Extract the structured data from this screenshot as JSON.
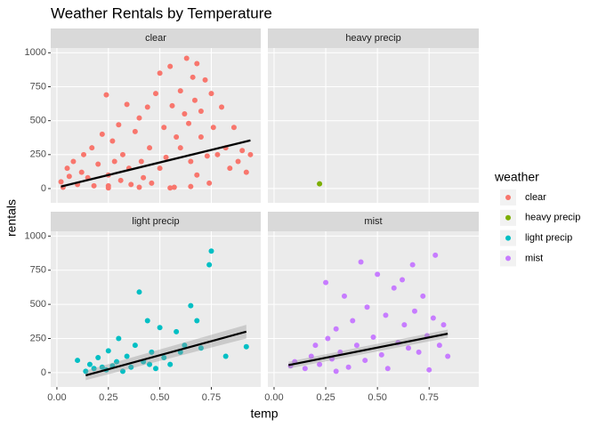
{
  "chart_data": {
    "type": "scatter",
    "title": "Weather Rentals by Temperature",
    "x_label": "temp",
    "y_label": "rentals",
    "legend_title": "weather",
    "xlim": [
      -0.03,
      0.99
    ],
    "ylim": [
      -105,
      1035
    ],
    "xticks": [
      {
        "value": 0,
        "label": "0.00"
      },
      {
        "value": 0.25,
        "label": "0.25"
      },
      {
        "value": 0.5,
        "label": "0.50"
      },
      {
        "value": 0.75,
        "label": "0.75"
      }
    ],
    "yticks": [
      0,
      250,
      500,
      750,
      1000
    ],
    "grid": true,
    "facets": [
      {
        "name": "clear",
        "color": "#F8766D",
        "x": [
          0.02,
          0.03,
          0.05,
          0.06,
          0.08,
          0.1,
          0.12,
          0.13,
          0.15,
          0.17,
          0.18,
          0.2,
          0.22,
          0.24,
          0.25,
          0.25,
          0.27,
          0.28,
          0.3,
          0.31,
          0.32,
          0.34,
          0.35,
          0.36,
          0.38,
          0.4,
          0.41,
          0.42,
          0.44,
          0.45,
          0.46,
          0.48,
          0.5,
          0.5,
          0.52,
          0.53,
          0.55,
          0.56,
          0.57,
          0.58,
          0.6,
          0.6,
          0.62,
          0.63,
          0.64,
          0.65,
          0.66,
          0.67,
          0.68,
          0.68,
          0.7,
          0.7,
          0.72,
          0.73,
          0.74,
          0.75,
          0.76,
          0.78,
          0.8,
          0.82,
          0.84,
          0.86,
          0.88,
          0.9,
          0.92,
          0.94,
          0.25,
          0.4,
          0.55,
          0.65
        ],
        "y": [
          50,
          10,
          150,
          90,
          200,
          30,
          120,
          250,
          80,
          300,
          20,
          180,
          400,
          690,
          100,
          5,
          350,
          200,
          470,
          60,
          250,
          620,
          150,
          30,
          420,
          520,
          200,
          80,
          600,
          300,
          40,
          700,
          850,
          150,
          450,
          230,
          900,
          610,
          10,
          380,
          720,
          300,
          550,
          960,
          480,
          200,
          820,
          650,
          100,
          920,
          380,
          570,
          800,
          240,
          40,
          700,
          450,
          250,
          600,
          300,
          150,
          450,
          200,
          280,
          120,
          250,
          20,
          10,
          5,
          15
        ],
        "fit": {
          "x": [
            0.02,
            0.94
          ],
          "y": [
            15,
            355
          ],
          "lower": [
            5,
            345
          ],
          "upper": [
            25,
            365
          ]
        }
      },
      {
        "name": "heavy precip",
        "color": "#7CAE00",
        "x": [
          0.22
        ],
        "y": [
          35
        ]
      },
      {
        "name": "light precip",
        "color": "#00BFC4",
        "x": [
          0.1,
          0.14,
          0.16,
          0.18,
          0.2,
          0.22,
          0.24,
          0.25,
          0.27,
          0.29,
          0.3,
          0.32,
          0.34,
          0.36,
          0.38,
          0.4,
          0.42,
          0.44,
          0.46,
          0.48,
          0.5,
          0.52,
          0.55,
          0.58,
          0.62,
          0.65,
          0.7,
          0.74,
          0.75,
          0.82,
          0.92,
          0.68,
          0.6,
          0.45
        ],
        "y": [
          90,
          10,
          60,
          30,
          110,
          40,
          20,
          160,
          50,
          80,
          250,
          10,
          120,
          40,
          200,
          590,
          80,
          380,
          150,
          30,
          330,
          110,
          60,
          300,
          200,
          490,
          180,
          790,
          890,
          120,
          190,
          380,
          150,
          60
        ],
        "fit": {
          "x": [
            0.14,
            0.92
          ],
          "y": [
            -20,
            300
          ],
          "lower": [
            -55,
            250
          ],
          "upper": [
            15,
            350
          ]
        }
      },
      {
        "name": "mist",
        "color": "#C77CFF",
        "x": [
          0.08,
          0.1,
          0.15,
          0.18,
          0.2,
          0.22,
          0.25,
          0.26,
          0.28,
          0.3,
          0.32,
          0.34,
          0.36,
          0.38,
          0.4,
          0.42,
          0.44,
          0.45,
          0.48,
          0.5,
          0.52,
          0.54,
          0.55,
          0.58,
          0.6,
          0.62,
          0.63,
          0.65,
          0.67,
          0.68,
          0.7,
          0.72,
          0.74,
          0.75,
          0.77,
          0.78,
          0.8,
          0.82,
          0.84,
          0.3
        ],
        "y": [
          50,
          80,
          30,
          120,
          200,
          60,
          660,
          250,
          100,
          320,
          150,
          560,
          40,
          380,
          200,
          810,
          90,
          480,
          260,
          720,
          130,
          420,
          30,
          620,
          220,
          680,
          350,
          180,
          790,
          450,
          150,
          560,
          270,
          20,
          400,
          860,
          200,
          350,
          120,
          10
        ],
        "fit": {
          "x": [
            0.07,
            0.84
          ],
          "y": [
            55,
            285
          ],
          "lower": [
            30,
            255
          ],
          "upper": [
            80,
            315
          ]
        }
      }
    ]
  }
}
